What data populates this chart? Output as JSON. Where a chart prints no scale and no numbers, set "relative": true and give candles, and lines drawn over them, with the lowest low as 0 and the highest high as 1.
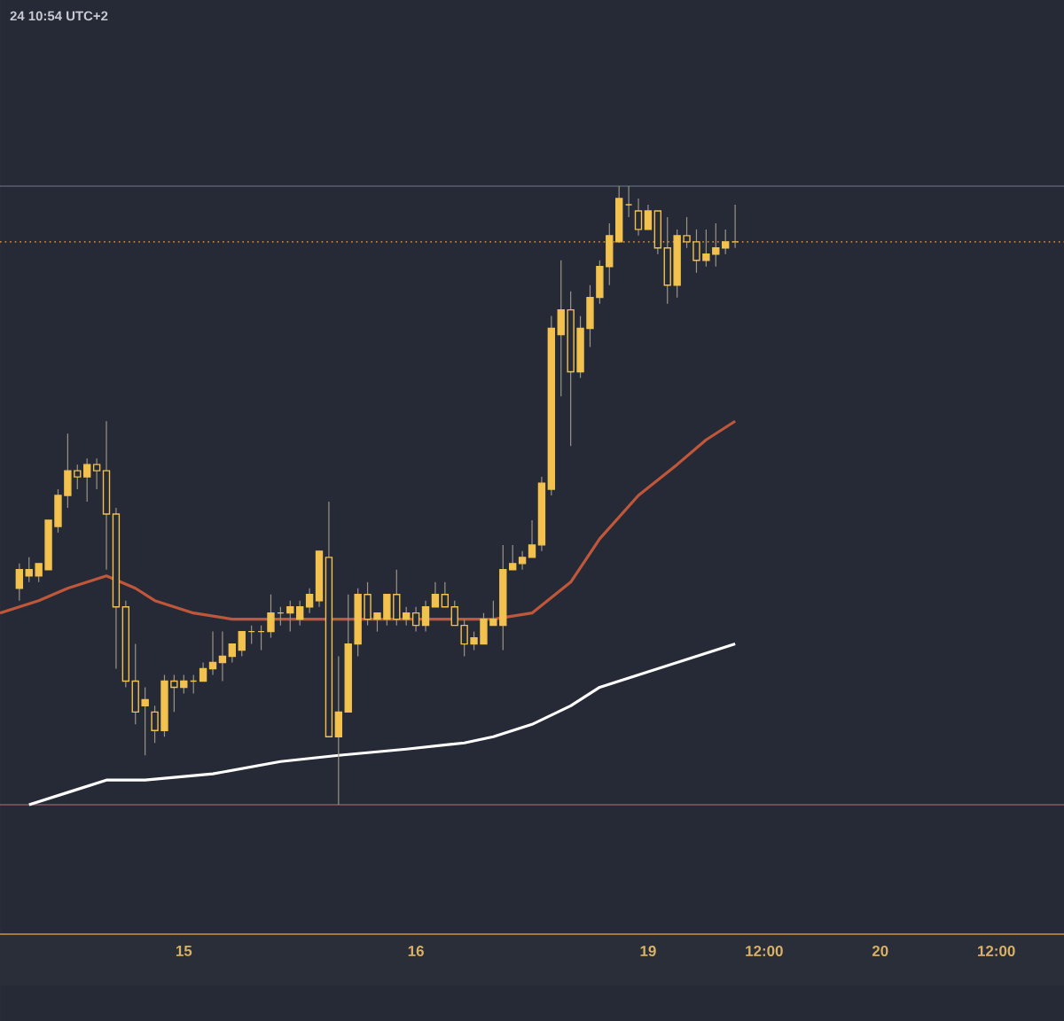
{
  "chart_data": {
    "type": "candlestick",
    "relative": true,
    "color": "#f2c14e",
    "tick_labels": "x",
    "annotations": [
      "24 10:54 UTC+2"
    ],
    "categories": [
      null,
      null,
      null,
      null,
      null,
      null,
      null,
      null,
      null,
      null,
      null,
      null,
      null,
      null,
      null,
      null,
      null,
      null,
      null,
      "15",
      null,
      null,
      null,
      null,
      null,
      null,
      null,
      null,
      null,
      null,
      null,
      null,
      null,
      null,
      null,
      null,
      null,
      null,
      null,
      null,
      null,
      null,
      null,
      "16",
      null,
      null,
      null,
      null,
      null,
      null,
      null,
      null,
      null,
      null,
      null,
      null,
      null,
      null,
      null,
      null,
      null,
      null,
      null,
      null,
      null,
      null,
      null,
      "19",
      null,
      null,
      null,
      null,
      null,
      null,
      null,
      null,
      null,
      null,
      null,
      "12:00",
      null,
      null,
      null,
      null,
      null,
      null,
      null,
      null,
      null,
      null,
      null,
      "20",
      null,
      null,
      null,
      null,
      null,
      null,
      null,
      null,
      null,
      null,
      null,
      "12:00",
      null,
      null,
      null,
      null,
      null,
      null,
      null
    ],
    "ohlc": [
      null,
      null,
      [
        0.35,
        0.39,
        0.33,
        0.38
      ],
      [
        0.37,
        0.4,
        0.36,
        0.38
      ],
      [
        0.37,
        0.39,
        0.36,
        0.39
      ],
      [
        0.38,
        0.46,
        0.38,
        0.46
      ],
      [
        0.45,
        0.51,
        0.44,
        0.5
      ],
      [
        0.5,
        0.6,
        0.48,
        0.54
      ],
      [
        0.54,
        0.55,
        0.51,
        0.53
      ],
      [
        0.53,
        0.56,
        0.49,
        0.55
      ],
      [
        0.55,
        0.56,
        0.51,
        0.54
      ],
      [
        0.54,
        0.62,
        0.38,
        0.47
      ],
      [
        0.47,
        0.48,
        0.22,
        0.32
      ],
      [
        0.32,
        0.33,
        0.19,
        0.2
      ],
      [
        0.2,
        0.26,
        0.13,
        0.15
      ],
      [
        0.16,
        0.19,
        0.08,
        0.17
      ],
      [
        0.15,
        0.16,
        0.1,
        0.12
      ],
      [
        0.12,
        0.21,
        0.11,
        0.2
      ],
      [
        0.2,
        0.21,
        0.15,
        0.19
      ],
      [
        0.19,
        0.21,
        0.18,
        0.2
      ],
      [
        0.2,
        0.21,
        0.18,
        0.2
      ],
      [
        0.2,
        0.23,
        0.2,
        0.22
      ],
      [
        0.22,
        0.28,
        0.21,
        0.23
      ],
      [
        0.23,
        0.28,
        0.2,
        0.24
      ],
      [
        0.24,
        0.26,
        0.23,
        0.26
      ],
      [
        0.25,
        0.28,
        0.24,
        0.28
      ],
      [
        0.28,
        0.29,
        0.26,
        0.28
      ],
      [
        0.28,
        0.29,
        0.25,
        0.28
      ],
      [
        0.28,
        0.34,
        0.27,
        0.31
      ],
      [
        0.31,
        0.32,
        0.29,
        0.31
      ],
      [
        0.31,
        0.33,
        0.28,
        0.32
      ],
      [
        0.3,
        0.33,
        0.29,
        0.32
      ],
      [
        0.32,
        0.35,
        0.31,
        0.34
      ],
      [
        0.33,
        0.41,
        0.32,
        0.41
      ],
      [
        0.4,
        0.49,
        0.11,
        0.11
      ],
      [
        0.11,
        0.24,
        0.0,
        0.15
      ],
      [
        0.15,
        0.34,
        0.15,
        0.26
      ],
      [
        0.26,
        0.35,
        0.24,
        0.34
      ],
      [
        0.34,
        0.36,
        0.29,
        0.3
      ],
      [
        0.3,
        0.31,
        0.28,
        0.31
      ],
      [
        0.3,
        0.34,
        0.29,
        0.34
      ],
      [
        0.34,
        0.38,
        0.29,
        0.3
      ],
      [
        0.3,
        0.32,
        0.29,
        0.31
      ],
      [
        0.31,
        0.32,
        0.28,
        0.29
      ],
      [
        0.29,
        0.33,
        0.28,
        0.32
      ],
      [
        0.32,
        0.36,
        0.32,
        0.34
      ],
      [
        0.34,
        0.36,
        0.32,
        0.32
      ],
      [
        0.32,
        0.33,
        0.29,
        0.29
      ],
      [
        0.29,
        0.3,
        0.24,
        0.26
      ],
      [
        0.26,
        0.28,
        0.25,
        0.27
      ],
      [
        0.26,
        0.31,
        0.26,
        0.3
      ],
      [
        0.29,
        0.33,
        0.29,
        0.3
      ],
      [
        0.29,
        0.42,
        0.25,
        0.38
      ],
      [
        0.38,
        0.42,
        0.38,
        0.39
      ],
      [
        0.39,
        0.41,
        0.38,
        0.4
      ],
      [
        0.4,
        0.46,
        0.4,
        0.42
      ],
      [
        0.42,
        0.53,
        0.41,
        0.52
      ],
      [
        0.51,
        0.79,
        0.5,
        0.77
      ],
      [
        0.76,
        0.88,
        0.66,
        0.8
      ],
      [
        0.8,
        0.83,
        0.58,
        0.7
      ],
      [
        0.7,
        0.79,
        0.69,
        0.77
      ],
      [
        0.77,
        0.84,
        0.74,
        0.82
      ],
      [
        0.82,
        0.88,
        0.81,
        0.87
      ],
      [
        0.87,
        0.94,
        0.84,
        0.92
      ],
      [
        0.91,
        1.0,
        0.91,
        0.98
      ],
      [
        0.97,
        1.0,
        0.95,
        0.97
      ],
      [
        0.96,
        0.98,
        0.92,
        0.93
      ],
      [
        0.93,
        0.97,
        0.93,
        0.96
      ],
      [
        0.96,
        0.96,
        0.89,
        0.9
      ],
      [
        0.9,
        0.95,
        0.81,
        0.84
      ],
      [
        0.84,
        0.93,
        0.82,
        0.92
      ],
      [
        0.92,
        0.95,
        0.9,
        0.91
      ],
      [
        0.91,
        0.93,
        0.86,
        0.88
      ],
      [
        0.88,
        0.93,
        0.87,
        0.89
      ],
      [
        0.89,
        0.94,
        0.87,
        0.9
      ],
      [
        0.9,
        0.93,
        0.89,
        0.91
      ],
      [
        0.91,
        0.97,
        0.9,
        0.91
      ],
      null,
      null,
      null,
      null,
      null,
      null,
      null,
      null,
      null,
      null,
      null,
      null,
      null,
      null,
      null,
      null,
      null,
      null,
      null,
      null,
      null,
      null,
      null,
      null,
      null,
      null,
      null,
      null,
      null,
      null,
      null,
      null,
      null,
      null
    ],
    "series": [
      {
        "type": "line",
        "color": "#c0573a",
        "values": [
          0.31,
          null,
          null,
          null,
          0.33,
          null,
          null,
          0.35,
          null,
          null,
          null,
          0.37,
          null,
          null,
          0.35,
          null,
          0.33,
          null,
          null,
          null,
          0.31,
          null,
          null,
          null,
          0.3,
          null,
          null,
          0.3,
          null,
          null,
          null,
          0.3,
          null,
          null,
          null,
          null,
          null,
          0.3,
          null,
          null,
          null,
          null,
          0.3,
          null,
          null,
          null,
          null,
          null,
          0.3,
          null,
          null,
          0.3,
          null,
          null,
          null,
          0.31,
          null,
          null,
          null,
          0.36,
          null,
          null,
          0.43,
          null,
          null,
          null,
          0.5,
          null,
          null,
          null,
          0.55,
          null,
          null,
          0.59,
          null,
          null,
          0.62,
          null,
          null,
          null,
          null,
          null,
          null,
          null,
          null,
          null,
          null,
          null,
          null,
          null,
          null,
          null,
          null,
          null,
          null,
          null,
          null,
          null,
          null,
          null,
          null,
          null,
          null,
          null,
          null,
          null,
          null,
          null,
          null,
          null,
          null
        ]
      },
      {
        "type": "line",
        "color": "#ffffff",
        "values": [
          null,
          null,
          null,
          0.0,
          null,
          null,
          null,
          0.02,
          null,
          null,
          null,
          0.04,
          null,
          null,
          null,
          0.04,
          null,
          null,
          null,
          null,
          null,
          null,
          0.05,
          null,
          null,
          null,
          null,
          null,
          null,
          0.07,
          null,
          null,
          null,
          null,
          null,
          0.08,
          null,
          null,
          null,
          null,
          null,
          null,
          0.09,
          null,
          null,
          null,
          null,
          null,
          0.1,
          null,
          null,
          0.11,
          null,
          null,
          null,
          0.13,
          null,
          null,
          null,
          0.16,
          null,
          null,
          0.19,
          null,
          null,
          null,
          0.21,
          null,
          null,
          null,
          0.23,
          null,
          null,
          null,
          null,
          null,
          0.26,
          null,
          null,
          null,
          null,
          null,
          null,
          null,
          null,
          null,
          null,
          null,
          null,
          null,
          null,
          null,
          null,
          null,
          null,
          null,
          null,
          null,
          null,
          null,
          null,
          null,
          null,
          null,
          null,
          null,
          null,
          null,
          null,
          null,
          null
        ]
      }
    ],
    "ref_lines": [
      {
        "axis": "y",
        "value": 1.0,
        "color": "#5a5f6e",
        "line_style": "solid"
      },
      {
        "axis": "y",
        "value": 0.91,
        "color": "#c8873a",
        "line_style": "dotted"
      },
      {
        "axis": "y",
        "value": 0.0,
        "color": "#8a5a60",
        "line_style": "solid"
      }
    ]
  }
}
